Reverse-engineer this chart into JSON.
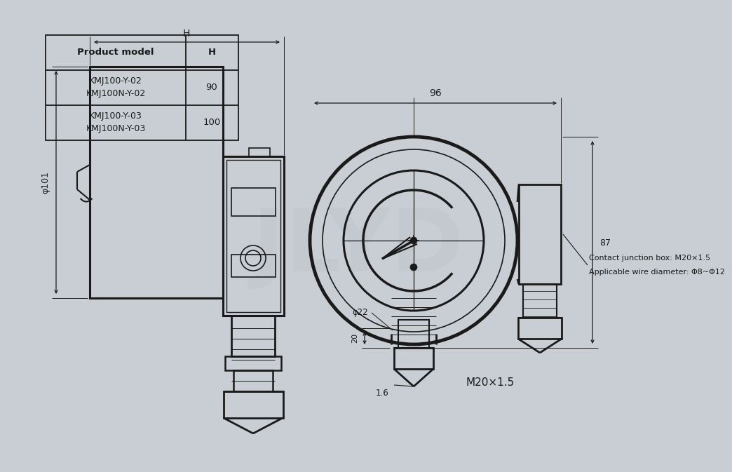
{
  "bg_color": "#c9cdd4",
  "line_color": "#1a1a1a",
  "fig_width": 10.0,
  "fig_height": 6.53,
  "watermark_text": "JLYD",
  "annotations": {
    "H_label": "H",
    "phi101": "φ101",
    "dim96": "96",
    "dim87": "87",
    "dim22": "φ22",
    "dim20": "20",
    "dim16": "1.6",
    "M20": "M20×1.5",
    "contact_box": "Contact junction box: M20×1.5",
    "wire_dia": "Applicable wire diameter: Φ8~Φ12"
  },
  "table": {
    "header": [
      "Product model",
      "H"
    ],
    "rows": [
      [
        "KMJ100-Y-02\nKMJ100N-Y-02",
        "90"
      ],
      [
        "KMJ100-Y-03\nKMJ100N-Y-03",
        "100"
      ]
    ]
  }
}
